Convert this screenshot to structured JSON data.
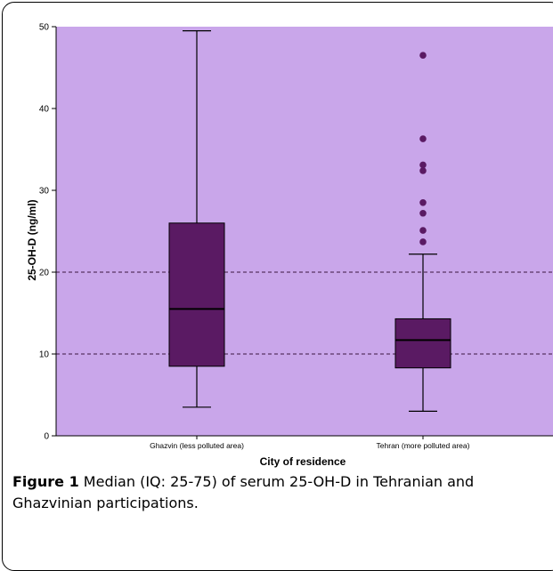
{
  "chart_data": {
    "type": "box",
    "xlabel": "City of residence",
    "ylabel": "25-OH-D (ng/ml)",
    "ylim": [
      0,
      50
    ],
    "yticks": [
      0,
      10,
      20,
      30,
      40,
      50
    ],
    "grid": false,
    "reference_lines": [
      10,
      20
    ],
    "background": "#c9a6ea",
    "box_color": "#5a1a63",
    "categories": [
      "Ghazvin (less polluted area)",
      "Tehran (more polluted area)"
    ],
    "boxes": [
      {
        "category": "Ghazvin (less polluted area)",
        "whisker_low": 3.5,
        "q1": 8.5,
        "median": 15.5,
        "q3": 26,
        "whisker_high": 49.5,
        "outliers": []
      },
      {
        "category": "Tehran (more polluted area)",
        "whisker_low": 3,
        "q1": 8.3,
        "median": 11.7,
        "q3": 14.3,
        "whisker_high": 22.2,
        "outliers": [
          23.7,
          25.1,
          27.2,
          28.5,
          32.4,
          33.1,
          36.3,
          46.5
        ]
      }
    ]
  },
  "caption": {
    "label": "Figure 1",
    "text": "Median (IQ: 25-75) of serum 25-OH-D in Tehranian and Ghazvinian participations",
    "end": "."
  }
}
